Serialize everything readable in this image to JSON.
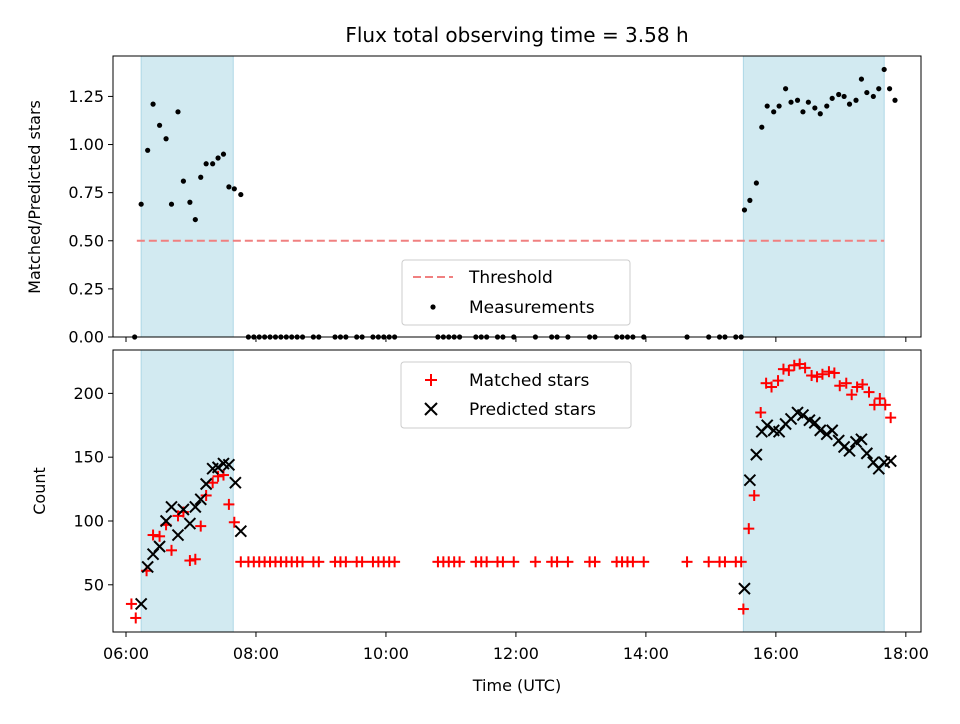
{
  "chart_data": [
    {
      "type": "scatter",
      "title": "Flux total observing time = 3.58 h",
      "ylabel": "Matched/Predicted stars",
      "xlim": [
        "05:48",
        "18:14"
      ],
      "ylim": [
        0,
        1.46
      ],
      "yticks": [
        "0.00",
        "0.25",
        "0.50",
        "0.75",
        "1.00",
        "1.25"
      ],
      "yticks_values": [
        0,
        0.25,
        0.5,
        0.75,
        1.0,
        1.25
      ],
      "shaded_intervals": [
        [
          "06:14",
          "07:39"
        ],
        [
          "15:30",
          "17:40"
        ]
      ],
      "shade_color": "#add8e6",
      "threshold": {
        "name": "Threshold",
        "value": 0.5,
        "x_range": [
          "06:10",
          "17:40"
        ],
        "color": "#f08080",
        "style": "dashed"
      },
      "legend": {
        "position": "lower-center",
        "entries": [
          "Threshold",
          "Measurements"
        ]
      },
      "series": [
        {
          "name": "Measurements",
          "marker": "dot",
          "color": "#000000",
          "points": [
            [
              "06:08",
              0.0
            ],
            [
              "06:14",
              0.69
            ],
            [
              "06:20",
              0.97
            ],
            [
              "06:25",
              1.21
            ],
            [
              "06:31",
              1.1
            ],
            [
              "06:37",
              1.03
            ],
            [
              "06:42",
              0.69
            ],
            [
              "06:48",
              1.17
            ],
            [
              "06:53",
              0.81
            ],
            [
              "06:59",
              0.7
            ],
            [
              "07:04",
              0.61
            ],
            [
              "07:09",
              0.83
            ],
            [
              "07:14",
              0.9
            ],
            [
              "07:20",
              0.9
            ],
            [
              "07:25",
              0.93
            ],
            [
              "07:30",
              0.95
            ],
            [
              "07:35",
              0.78
            ],
            [
              "07:40",
              0.77
            ],
            [
              "07:46",
              0.74
            ],
            [
              "07:53",
              0.0
            ],
            [
              "07:58",
              0.0
            ],
            [
              "08:03",
              0.0
            ],
            [
              "08:08",
              0.0
            ],
            [
              "08:13",
              0.0
            ],
            [
              "08:18",
              0.0
            ],
            [
              "08:23",
              0.0
            ],
            [
              "08:28",
              0.0
            ],
            [
              "08:33",
              0.0
            ],
            [
              "08:38",
              0.0
            ],
            [
              "08:43",
              0.0
            ],
            [
              "08:53",
              0.0
            ],
            [
              "08:58",
              0.0
            ],
            [
              "09:13",
              0.0
            ],
            [
              "09:18",
              0.0
            ],
            [
              "09:23",
              0.0
            ],
            [
              "09:33",
              0.0
            ],
            [
              "09:38",
              0.0
            ],
            [
              "09:48",
              0.0
            ],
            [
              "09:53",
              0.0
            ],
            [
              "09:58",
              0.0
            ],
            [
              "10:03",
              0.0
            ],
            [
              "10:08",
              0.0
            ],
            [
              "10:48",
              0.0
            ],
            [
              "10:53",
              0.0
            ],
            [
              "10:58",
              0.0
            ],
            [
              "11:03",
              0.0
            ],
            [
              "11:08",
              0.0
            ],
            [
              "11:23",
              0.0
            ],
            [
              "11:28",
              0.0
            ],
            [
              "11:33",
              0.0
            ],
            [
              "11:43",
              0.0
            ],
            [
              "11:48",
              0.0
            ],
            [
              "11:58",
              0.0
            ],
            [
              "12:18",
              0.0
            ],
            [
              "12:33",
              0.0
            ],
            [
              "12:38",
              0.0
            ],
            [
              "12:48",
              0.0
            ],
            [
              "13:08",
              0.0
            ],
            [
              "13:13",
              0.0
            ],
            [
              "13:33",
              0.0
            ],
            [
              "13:38",
              0.0
            ],
            [
              "13:43",
              0.0
            ],
            [
              "13:48",
              0.0
            ],
            [
              "13:58",
              0.0
            ],
            [
              "14:38",
              0.0
            ],
            [
              "14:58",
              0.0
            ],
            [
              "15:08",
              0.0
            ],
            [
              "15:13",
              0.0
            ],
            [
              "15:23",
              0.0
            ],
            [
              "15:28",
              0.0
            ],
            [
              "15:31",
              0.66
            ],
            [
              "15:36",
              0.71
            ],
            [
              "15:42",
              0.8
            ],
            [
              "15:47",
              1.09
            ],
            [
              "15:52",
              1.2
            ],
            [
              "15:58",
              1.17
            ],
            [
              "16:03",
              1.2
            ],
            [
              "16:09",
              1.29
            ],
            [
              "16:14",
              1.22
            ],
            [
              "16:20",
              1.23
            ],
            [
              "16:25",
              1.17
            ],
            [
              "16:30",
              1.22
            ],
            [
              "16:36",
              1.19
            ],
            [
              "16:41",
              1.16
            ],
            [
              "16:47",
              1.2
            ],
            [
              "16:52",
              1.24
            ],
            [
              "16:58",
              1.26
            ],
            [
              "17:03",
              1.25
            ],
            [
              "17:08",
              1.21
            ],
            [
              "17:14",
              1.23
            ],
            [
              "17:19",
              1.34
            ],
            [
              "17:24",
              1.27
            ],
            [
              "17:30",
              1.25
            ],
            [
              "17:35",
              1.29
            ],
            [
              "17:40",
              1.39
            ],
            [
              "17:45",
              1.29
            ],
            [
              "17:50",
              1.23
            ]
          ]
        }
      ]
    },
    {
      "type": "scatter",
      "xlabel": "Time (UTC)",
      "ylabel": "Count",
      "xlim": [
        "05:48",
        "18:14"
      ],
      "ylim": [
        13,
        234
      ],
      "yticks": [
        "50",
        "100",
        "150",
        "200"
      ],
      "yticks_values": [
        50,
        100,
        150,
        200
      ],
      "xticks": [
        "06:00",
        "08:00",
        "10:00",
        "12:00",
        "14:00",
        "16:00",
        "18:00"
      ],
      "shaded_intervals": [
        [
          "06:14",
          "07:39"
        ],
        [
          "15:30",
          "17:40"
        ]
      ],
      "shade_color": "#add8e6",
      "legend": {
        "position": "upper-center",
        "entries": [
          "Matched stars",
          "Predicted stars"
        ]
      },
      "series": [
        {
          "name": "Matched stars",
          "marker": "plus",
          "color": "#ff0000",
          "points": [
            [
              "06:05",
              35
            ],
            [
              "06:09",
              24
            ],
            [
              "06:19",
              61
            ],
            [
              "06:25",
              89
            ],
            [
              "06:31",
              88
            ],
            [
              "06:37",
              97
            ],
            [
              "06:42",
              77
            ],
            [
              "06:48",
              104
            ],
            [
              "06:53",
              107
            ],
            [
              "06:59",
              69
            ],
            [
              "07:04",
              70
            ],
            [
              "07:09",
              96
            ],
            [
              "07:14",
              120
            ],
            [
              "07:20",
              130
            ],
            [
              "07:25",
              135
            ],
            [
              "07:30",
              136
            ],
            [
              "07:35",
              113
            ],
            [
              "07:40",
              99
            ],
            [
              "07:46",
              68
            ],
            [
              "07:53",
              68
            ],
            [
              "07:58",
              68
            ],
            [
              "08:03",
              68
            ],
            [
              "08:08",
              68
            ],
            [
              "08:13",
              68
            ],
            [
              "08:18",
              68
            ],
            [
              "08:23",
              68
            ],
            [
              "08:28",
              68
            ],
            [
              "08:33",
              68
            ],
            [
              "08:38",
              68
            ],
            [
              "08:43",
              68
            ],
            [
              "08:53",
              68
            ],
            [
              "08:58",
              68
            ],
            [
              "09:13",
              68
            ],
            [
              "09:18",
              68
            ],
            [
              "09:23",
              68
            ],
            [
              "09:33",
              68
            ],
            [
              "09:38",
              68
            ],
            [
              "09:48",
              68
            ],
            [
              "09:53",
              68
            ],
            [
              "09:58",
              68
            ],
            [
              "10:03",
              68
            ],
            [
              "10:08",
              68
            ],
            [
              "10:48",
              68
            ],
            [
              "10:53",
              68
            ],
            [
              "10:58",
              68
            ],
            [
              "11:03",
              68
            ],
            [
              "11:08",
              68
            ],
            [
              "11:23",
              68
            ],
            [
              "11:28",
              68
            ],
            [
              "11:33",
              68
            ],
            [
              "11:43",
              68
            ],
            [
              "11:48",
              68
            ],
            [
              "11:58",
              68
            ],
            [
              "12:18",
              68
            ],
            [
              "12:33",
              68
            ],
            [
              "12:38",
              68
            ],
            [
              "12:48",
              68
            ],
            [
              "13:08",
              68
            ],
            [
              "13:13",
              68
            ],
            [
              "13:33",
              68
            ],
            [
              "13:38",
              68
            ],
            [
              "13:43",
              68
            ],
            [
              "13:48",
              68
            ],
            [
              "13:58",
              68
            ],
            [
              "14:38",
              68
            ],
            [
              "14:58",
              68
            ],
            [
              "15:08",
              68
            ],
            [
              "15:13",
              68
            ],
            [
              "15:23",
              68
            ],
            [
              "15:28",
              68
            ],
            [
              "15:30",
              31
            ],
            [
              "15:35",
              94
            ],
            [
              "15:40",
              120
            ],
            [
              "15:46",
              185
            ],
            [
              "15:51",
              208
            ],
            [
              "15:56",
              205
            ],
            [
              "16:02",
              210
            ],
            [
              "16:07",
              219
            ],
            [
              "16:12",
              218
            ],
            [
              "16:17",
              222
            ],
            [
              "16:22",
              223
            ],
            [
              "16:27",
              220
            ],
            [
              "16:33",
              214
            ],
            [
              "16:38",
              213
            ],
            [
              "16:43",
              215
            ],
            [
              "16:49",
              217
            ],
            [
              "16:54",
              216
            ],
            [
              "16:59",
              206
            ],
            [
              "17:05",
              208
            ],
            [
              "17:10",
              199
            ],
            [
              "17:15",
              205
            ],
            [
              "17:20",
              207
            ],
            [
              "17:26",
              201
            ],
            [
              "17:31",
              191
            ],
            [
              "17:36",
              196
            ],
            [
              "17:41",
              191
            ],
            [
              "17:46",
              181
            ]
          ]
        },
        {
          "name": "Predicted stars",
          "marker": "x",
          "color": "#000000",
          "points": [
            [
              "06:14",
              35
            ],
            [
              "06:20",
              64
            ],
            [
              "06:25",
              74
            ],
            [
              "06:31",
              80
            ],
            [
              "06:37",
              100
            ],
            [
              "06:42",
              111
            ],
            [
              "06:48",
              89
            ],
            [
              "06:53",
              109
            ],
            [
              "06:59",
              98
            ],
            [
              "07:04",
              111
            ],
            [
              "07:09",
              117
            ],
            [
              "07:14",
              129
            ],
            [
              "07:20",
              141
            ],
            [
              "07:25",
              142
            ],
            [
              "07:30",
              145
            ],
            [
              "07:35",
              144
            ],
            [
              "07:41",
              130
            ],
            [
              "07:46",
              92
            ],
            [
              "15:31",
              47
            ],
            [
              "15:36",
              132
            ],
            [
              "15:42",
              152
            ],
            [
              "15:47",
              170
            ],
            [
              "15:52",
              175
            ],
            [
              "15:58",
              171
            ],
            [
              "16:03",
              170
            ],
            [
              "16:09",
              176
            ],
            [
              "16:14",
              180
            ],
            [
              "16:20",
              185
            ],
            [
              "16:25",
              183
            ],
            [
              "16:31",
              179
            ],
            [
              "16:36",
              177
            ],
            [
              "16:41",
              171
            ],
            [
              "16:47",
              168
            ],
            [
              "16:52",
              171
            ],
            [
              "16:58",
              163
            ],
            [
              "17:03",
              158
            ],
            [
              "17:08",
              155
            ],
            [
              "17:14",
              162
            ],
            [
              "17:19",
              164
            ],
            [
              "17:24",
              153
            ],
            [
              "17:30",
              146
            ],
            [
              "17:35",
              141
            ],
            [
              "17:40",
              146
            ],
            [
              "17:46",
              147
            ]
          ]
        }
      ]
    }
  ]
}
